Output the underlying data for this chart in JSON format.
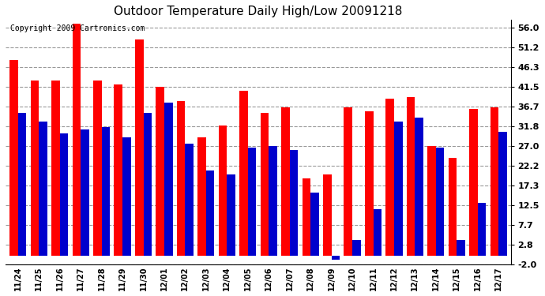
{
  "title": "Outdoor Temperature Daily High/Low 20091218",
  "copyright": "Copyright 2009 Cartronics.com",
  "labels": [
    "11/24",
    "11/25",
    "11/26",
    "11/27",
    "11/28",
    "11/29",
    "11/30",
    "12/01",
    "12/02",
    "12/03",
    "12/04",
    "12/05",
    "12/06",
    "12/07",
    "12/08",
    "12/09",
    "12/10",
    "12/11",
    "12/12",
    "12/13",
    "12/14",
    "12/15",
    "12/16",
    "12/17"
  ],
  "highs": [
    48.0,
    43.0,
    43.0,
    57.0,
    43.0,
    42.0,
    53.0,
    41.5,
    38.0,
    29.0,
    32.0,
    40.5,
    35.0,
    36.5,
    19.0,
    20.0,
    36.5,
    35.5,
    38.5,
    39.0,
    27.0,
    24.0,
    36.0,
    36.5
  ],
  "lows": [
    35.0,
    33.0,
    30.0,
    31.0,
    31.5,
    29.0,
    35.0,
    37.5,
    27.5,
    21.0,
    20.0,
    26.5,
    27.0,
    26.0,
    15.5,
    -1.0,
    4.0,
    11.5,
    33.0,
    34.0,
    26.5,
    4.0,
    13.0,
    30.5
  ],
  "high_color": "#ff0000",
  "low_color": "#0000cc",
  "bg_color": "#ffffff",
  "grid_color": "#999999",
  "ylim": [
    -2.0,
    58.0
  ],
  "yticks": [
    -2.0,
    2.8,
    7.7,
    12.5,
    17.3,
    22.2,
    27.0,
    31.8,
    36.7,
    41.5,
    46.3,
    51.2,
    56.0
  ],
  "title_fontsize": 11,
  "copyright_fontsize": 7,
  "bar_width": 0.4
}
